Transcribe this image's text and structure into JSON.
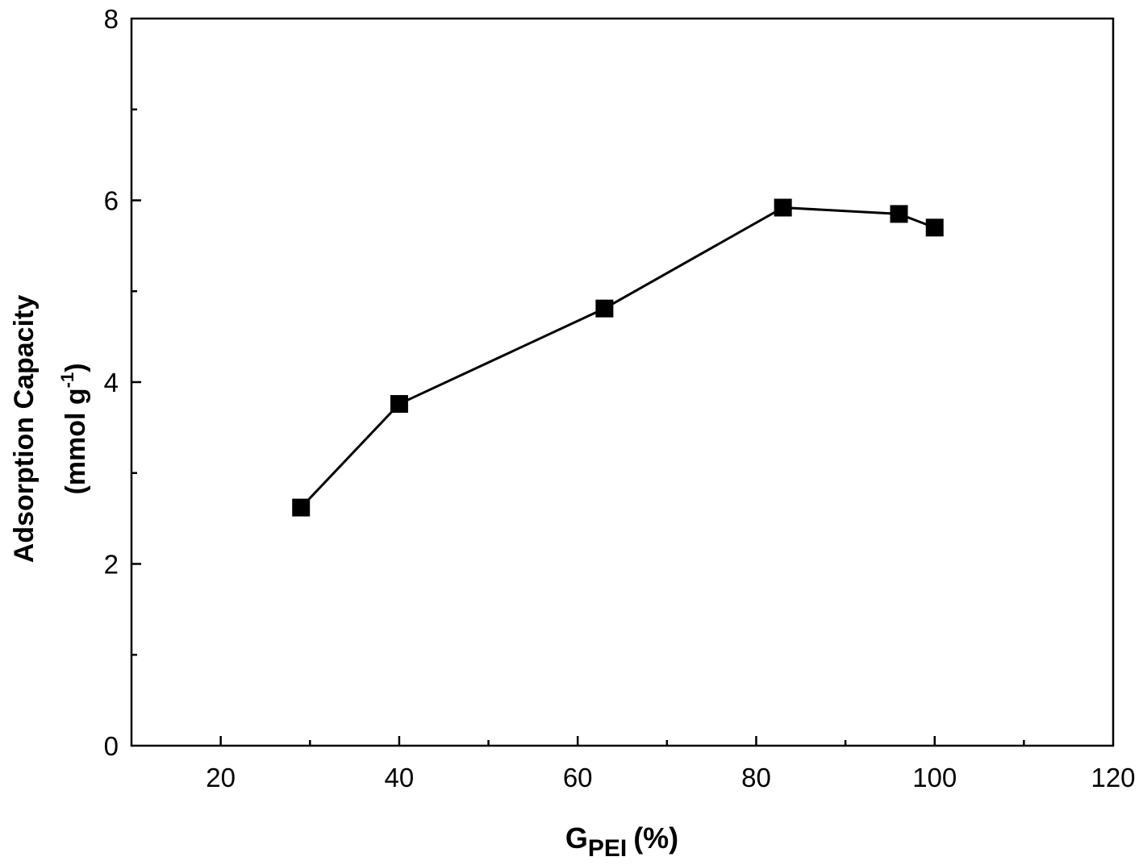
{
  "chart_data": {
    "type": "line",
    "title": "",
    "xlabel": {
      "main": "G",
      "subscript": "PEI",
      "unit": "(%)"
    },
    "ylabel": {
      "line1": "Adsorption Capacity",
      "line2_prefix": "(mmol g",
      "line2_superscript": "-1",
      "line2_suffix": ")"
    },
    "xlim": [
      10,
      120
    ],
    "ylim": [
      0,
      8
    ],
    "x_ticks": [
      20,
      40,
      60,
      80,
      100,
      120
    ],
    "x_minor_ticks": [
      30,
      50,
      70,
      90,
      110
    ],
    "y_ticks": [
      0,
      2,
      4,
      6,
      8
    ],
    "y_minor_ticks": [
      1,
      3,
      5,
      7
    ],
    "grid": false,
    "legend": "none",
    "series": [
      {
        "marker": "filled-square",
        "color": "#000000",
        "x": [
          29,
          40,
          63,
          83,
          96,
          100
        ],
        "y": [
          2.62,
          3.76,
          4.81,
          5.92,
          5.85,
          5.7
        ]
      }
    ]
  }
}
